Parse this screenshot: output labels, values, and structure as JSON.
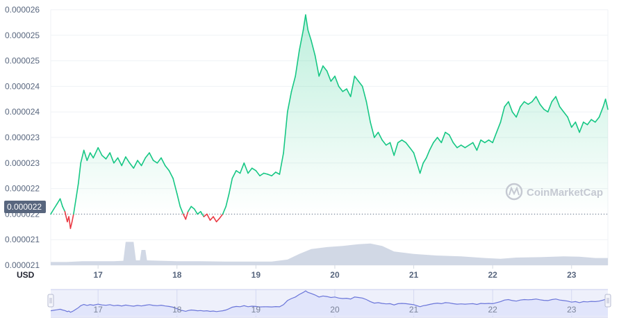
{
  "chart_data": {
    "type": "line",
    "x_unit_label": "USD",
    "watermark": "CoinMarketCap",
    "current_price_label": "0.000022",
    "baseline_value": 2.2e-05,
    "ylim": [
      2.1e-05,
      2.6e-05
    ],
    "y_ticks": [
      {
        "label": "0.000026",
        "value": 2.6e-05
      },
      {
        "label": "0.000025",
        "value": 2.55e-05
      },
      {
        "label": "0.000025",
        "value": 2.5e-05
      },
      {
        "label": "0.000024",
        "value": 2.45e-05
      },
      {
        "label": "0.000024",
        "value": 2.4e-05
      },
      {
        "label": "0.000023",
        "value": 2.35e-05
      },
      {
        "label": "0.000023",
        "value": 2.3e-05
      },
      {
        "label": "0.000022",
        "value": 2.25e-05
      },
      {
        "label": "0.000022",
        "value": 2.2e-05
      },
      {
        "label": "0.000021",
        "value": 2.15e-05
      },
      {
        "label": "0.000021",
        "value": 2.1e-05
      }
    ],
    "xlim": [
      16.4,
      23.46
    ],
    "x_ticks": [
      {
        "label": "17",
        "value": 17
      },
      {
        "label": "18",
        "value": 18
      },
      {
        "label": "19",
        "value": 19
      },
      {
        "label": "20",
        "value": 20
      },
      {
        "label": "21",
        "value": 21
      },
      {
        "label": "22",
        "value": 22
      },
      {
        "label": "23",
        "value": 23
      }
    ],
    "colors": {
      "up": "#16c784",
      "down": "#ea3943",
      "volume": "#cfd6e4",
      "grid": "#eff2f5",
      "navigator_fill": "#dfe3fb",
      "navigator_line": "#6a75d9",
      "label_bg": "#58667e"
    },
    "series": [
      {
        "values": [
          [
            16.4,
            2.2e-05
          ],
          [
            16.44,
            2.21e-05
          ],
          [
            16.48,
            2.22e-05
          ],
          [
            16.52,
            2.23e-05
          ],
          [
            16.55,
            2.215e-05
          ],
          [
            16.58,
            2.205e-05
          ],
          [
            16.61,
            2.185e-05
          ],
          [
            16.63,
            2.195e-05
          ],
          [
            16.65,
            2.172e-05
          ],
          [
            16.67,
            2.185e-05
          ],
          [
            16.69,
            2.2e-05
          ],
          [
            16.72,
            2.23e-05
          ],
          [
            16.75,
            2.26e-05
          ],
          [
            16.78,
            2.3e-05
          ],
          [
            16.82,
            2.325e-05
          ],
          [
            16.86,
            2.305e-05
          ],
          [
            16.9,
            2.32e-05
          ],
          [
            16.94,
            2.31e-05
          ],
          [
            17.0,
            2.33e-05
          ],
          [
            17.05,
            2.315e-05
          ],
          [
            17.1,
            2.308e-05
          ],
          [
            17.15,
            2.32e-05
          ],
          [
            17.2,
            2.3e-05
          ],
          [
            17.25,
            2.31e-05
          ],
          [
            17.3,
            2.295e-05
          ],
          [
            17.35,
            2.312e-05
          ],
          [
            17.4,
            2.3e-05
          ],
          [
            17.45,
            2.29e-05
          ],
          [
            17.5,
            2.305e-05
          ],
          [
            17.55,
            2.295e-05
          ],
          [
            17.6,
            2.31e-05
          ],
          [
            17.65,
            2.32e-05
          ],
          [
            17.7,
            2.305e-05
          ],
          [
            17.75,
            2.3e-05
          ],
          [
            17.8,
            2.31e-05
          ],
          [
            17.85,
            2.295e-05
          ],
          [
            17.9,
            2.285e-05
          ],
          [
            17.95,
            2.27e-05
          ],
          [
            18.0,
            2.24e-05
          ],
          [
            18.04,
            2.215e-05
          ],
          [
            18.08,
            2.2e-05
          ],
          [
            18.11,
            2.19e-05
          ],
          [
            18.14,
            2.205e-05
          ],
          [
            18.18,
            2.215e-05
          ],
          [
            18.22,
            2.21e-05
          ],
          [
            18.26,
            2.2e-05
          ],
          [
            18.3,
            2.205e-05
          ],
          [
            18.34,
            2.195e-05
          ],
          [
            18.38,
            2.2e-05
          ],
          [
            18.42,
            2.188e-05
          ],
          [
            18.46,
            2.195e-05
          ],
          [
            18.5,
            2.185e-05
          ],
          [
            18.54,
            2.192e-05
          ],
          [
            18.58,
            2.2e-05
          ],
          [
            18.62,
            2.215e-05
          ],
          [
            18.66,
            2.24e-05
          ],
          [
            18.7,
            2.27e-05
          ],
          [
            18.75,
            2.285e-05
          ],
          [
            18.8,
            2.28e-05
          ],
          [
            18.85,
            2.3e-05
          ],
          [
            18.9,
            2.28e-05
          ],
          [
            18.95,
            2.29e-05
          ],
          [
            19.0,
            2.285e-05
          ],
          [
            19.05,
            2.275e-05
          ],
          [
            19.1,
            2.28e-05
          ],
          [
            19.15,
            2.278e-05
          ],
          [
            19.2,
            2.275e-05
          ],
          [
            19.25,
            2.282e-05
          ],
          [
            19.3,
            2.278e-05
          ],
          [
            19.35,
            2.32e-05
          ],
          [
            19.4,
            2.4e-05
          ],
          [
            19.45,
            2.44e-05
          ],
          [
            19.5,
            2.47e-05
          ],
          [
            19.55,
            2.52e-05
          ],
          [
            19.6,
            2.56e-05
          ],
          [
            19.63,
            2.59e-05
          ],
          [
            19.66,
            2.56e-05
          ],
          [
            19.7,
            2.54e-05
          ],
          [
            19.75,
            2.51e-05
          ],
          [
            19.8,
            2.47e-05
          ],
          [
            19.85,
            2.49e-05
          ],
          [
            19.9,
            2.48e-05
          ],
          [
            19.95,
            2.46e-05
          ],
          [
            20.0,
            2.47e-05
          ],
          [
            20.05,
            2.45e-05
          ],
          [
            20.1,
            2.44e-05
          ],
          [
            20.15,
            2.445e-05
          ],
          [
            20.2,
            2.43e-05
          ],
          [
            20.25,
            2.47e-05
          ],
          [
            20.3,
            2.46e-05
          ],
          [
            20.35,
            2.45e-05
          ],
          [
            20.4,
            2.42e-05
          ],
          [
            20.45,
            2.38e-05
          ],
          [
            20.5,
            2.35e-05
          ],
          [
            20.55,
            2.36e-05
          ],
          [
            20.6,
            2.345e-05
          ],
          [
            20.65,
            2.335e-05
          ],
          [
            20.7,
            2.34e-05
          ],
          [
            20.75,
            2.315e-05
          ],
          [
            20.8,
            2.34e-05
          ],
          [
            20.85,
            2.345e-05
          ],
          [
            20.9,
            2.34e-05
          ],
          [
            20.95,
            2.33e-05
          ],
          [
            21.0,
            2.32e-05
          ],
          [
            21.04,
            2.3e-05
          ],
          [
            21.08,
            2.28e-05
          ],
          [
            21.12,
            2.3e-05
          ],
          [
            21.16,
            2.31e-05
          ],
          [
            21.2,
            2.325e-05
          ],
          [
            21.25,
            2.34e-05
          ],
          [
            21.3,
            2.35e-05
          ],
          [
            21.35,
            2.34e-05
          ],
          [
            21.4,
            2.36e-05
          ],
          [
            21.45,
            2.355e-05
          ],
          [
            21.5,
            2.34e-05
          ],
          [
            21.55,
            2.33e-05
          ],
          [
            21.6,
            2.335e-05
          ],
          [
            21.65,
            2.33e-05
          ],
          [
            21.7,
            2.335e-05
          ],
          [
            21.75,
            2.34e-05
          ],
          [
            21.8,
            2.325e-05
          ],
          [
            21.85,
            2.345e-05
          ],
          [
            21.9,
            2.34e-05
          ],
          [
            21.95,
            2.345e-05
          ],
          [
            22.0,
            2.34e-05
          ],
          [
            22.05,
            2.36e-05
          ],
          [
            22.1,
            2.38e-05
          ],
          [
            22.15,
            2.41e-05
          ],
          [
            22.2,
            2.42e-05
          ],
          [
            22.25,
            2.4e-05
          ],
          [
            22.3,
            2.39e-05
          ],
          [
            22.35,
            2.41e-05
          ],
          [
            22.4,
            2.42e-05
          ],
          [
            22.45,
            2.415e-05
          ],
          [
            22.5,
            2.42e-05
          ],
          [
            22.55,
            2.43e-05
          ],
          [
            22.6,
            2.415e-05
          ],
          [
            22.65,
            2.405e-05
          ],
          [
            22.7,
            2.4e-05
          ],
          [
            22.75,
            2.42e-05
          ],
          [
            22.8,
            2.43e-05
          ],
          [
            22.85,
            2.41e-05
          ],
          [
            22.9,
            2.4e-05
          ],
          [
            22.95,
            2.39e-05
          ],
          [
            23.0,
            2.37e-05
          ],
          [
            23.05,
            2.38e-05
          ],
          [
            23.1,
            2.36e-05
          ],
          [
            23.15,
            2.38e-05
          ],
          [
            23.2,
            2.375e-05
          ],
          [
            23.25,
            2.385e-05
          ],
          [
            23.3,
            2.38e-05
          ],
          [
            23.35,
            2.39e-05
          ],
          [
            23.4,
            2.41e-05
          ],
          [
            23.43,
            2.425e-05
          ],
          [
            23.46,
            2.405e-05
          ]
        ]
      }
    ],
    "volume": [
      [
        16.4,
        0.08
      ],
      [
        16.6,
        0.08
      ],
      [
        16.8,
        0.1
      ],
      [
        17.0,
        0.1
      ],
      [
        17.2,
        0.1
      ],
      [
        17.32,
        0.11
      ],
      [
        17.35,
        0.58
      ],
      [
        17.45,
        0.58
      ],
      [
        17.48,
        0.12
      ],
      [
        17.53,
        0.12
      ],
      [
        17.55,
        0.38
      ],
      [
        17.6,
        0.38
      ],
      [
        17.62,
        0.12
      ],
      [
        17.8,
        0.11
      ],
      [
        18.0,
        0.1
      ],
      [
        18.3,
        0.1
      ],
      [
        18.6,
        0.09
      ],
      [
        18.9,
        0.09
      ],
      [
        19.2,
        0.09
      ],
      [
        19.4,
        0.14
      ],
      [
        19.55,
        0.28
      ],
      [
        19.7,
        0.4
      ],
      [
        19.9,
        0.45
      ],
      [
        20.1,
        0.48
      ],
      [
        20.3,
        0.52
      ],
      [
        20.45,
        0.54
      ],
      [
        20.6,
        0.48
      ],
      [
        20.75,
        0.34
      ],
      [
        21.0,
        0.28
      ],
      [
        21.3,
        0.24
      ],
      [
        21.6,
        0.22
      ],
      [
        21.9,
        0.18
      ],
      [
        22.1,
        0.16
      ],
      [
        22.3,
        0.19
      ],
      [
        22.6,
        0.2
      ],
      [
        22.9,
        0.22
      ],
      [
        23.1,
        0.21
      ],
      [
        23.3,
        0.18
      ],
      [
        23.46,
        0.18
      ]
    ],
    "navigator_ticks": [
      "17",
      "18",
      "19",
      "20",
      "21",
      "22",
      "23"
    ]
  }
}
